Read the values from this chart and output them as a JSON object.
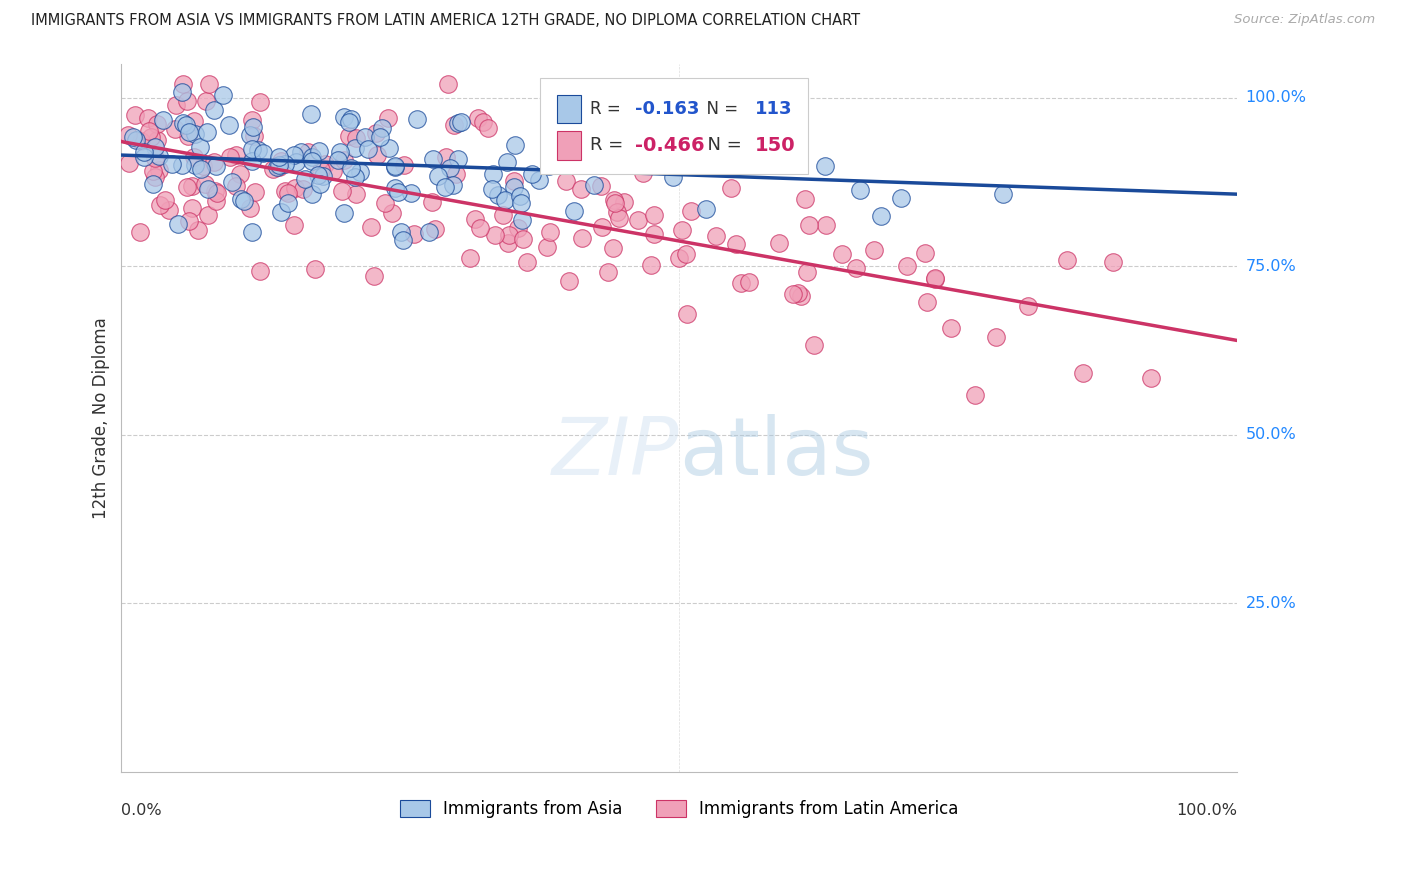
{
  "title": "IMMIGRANTS FROM ASIA VS IMMIGRANTS FROM LATIN AMERICA 12TH GRADE, NO DIPLOMA CORRELATION CHART",
  "source": "Source: ZipAtlas.com",
  "ylabel": "12th Grade, No Diploma",
  "color_asia": "#a8c8e8",
  "color_latin": "#f0a0b8",
  "color_asia_line": "#1a4a9a",
  "color_latin_line": "#cc3366",
  "background_color": "#ffffff",
  "legend_R_asia": "-0.163",
  "legend_N_asia": "113",
  "legend_R_latin": "-0.466",
  "legend_N_latin": "150",
  "watermark_zip": "ZIP",
  "watermark_atlas": "atlas"
}
